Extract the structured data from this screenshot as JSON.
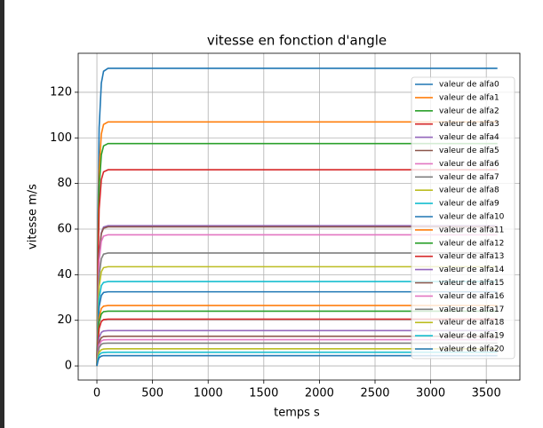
{
  "chart_data": {
    "type": "line",
    "title": "vitesse en fonction d'angle",
    "xlabel": "temps s",
    "ylabel": "vitesse m/s",
    "x": [
      0,
      10,
      20,
      40,
      60,
      100,
      3600
    ],
    "xlim": [
      -168,
      3802
    ],
    "ylim": [
      -6.2,
      137.1
    ],
    "xticks": [
      0,
      500,
      1000,
      1500,
      2000,
      2500,
      3000,
      3500
    ],
    "yticks": [
      0,
      20,
      40,
      60,
      80,
      100,
      120
    ],
    "grid": true,
    "legend": "upper right",
    "series": [
      {
        "name": "valeur de alfa0",
        "color": "#1f77b4",
        "values": [
          0,
          65.3,
          104.4,
          124,
          129.2,
          130.5,
          130.5
        ]
      },
      {
        "name": "valeur de alfa1",
        "color": "#ff7f0e",
        "values": [
          0,
          53.5,
          85.6,
          101.7,
          105.9,
          107,
          107
        ]
      },
      {
        "name": "valeur de alfa2",
        "color": "#2ca02c",
        "values": [
          0,
          48.8,
          78,
          92.6,
          96.5,
          97.5,
          97.5
        ]
      },
      {
        "name": "valeur de alfa3",
        "color": "#d62728",
        "values": [
          0,
          43,
          68.8,
          81.7,
          85.1,
          86,
          86
        ]
      },
      {
        "name": "valeur de alfa4",
        "color": "#9467bd",
        "values": [
          0,
          30.8,
          49.2,
          58.4,
          60.9,
          61.5,
          61.5
        ]
      },
      {
        "name": "valeur de alfa5",
        "color": "#8c564b",
        "values": [
          0,
          30.5,
          48.8,
          58,
          60.4,
          61,
          61
        ]
      },
      {
        "name": "valeur de alfa6",
        "color": "#e377c2",
        "values": [
          0,
          28.8,
          46,
          54.6,
          56.9,
          57.5,
          57.5
        ]
      },
      {
        "name": "valeur de alfa7",
        "color": "#7f7f7f",
        "values": [
          0,
          24.8,
          39.6,
          47,
          49,
          49.5,
          49.5
        ]
      },
      {
        "name": "valeur de alfa8",
        "color": "#bcbd22",
        "values": [
          0,
          21.8,
          34.8,
          41.3,
          43.1,
          43.5,
          43.5
        ]
      },
      {
        "name": "valeur de alfa9",
        "color": "#17becf",
        "values": [
          0,
          18.5,
          29.6,
          35.2,
          36.6,
          37,
          37
        ]
      },
      {
        "name": "valeur de alfa10",
        "color": "#1f77b4",
        "values": [
          0,
          16.3,
          26,
          30.9,
          32.2,
          32.5,
          32.5
        ]
      },
      {
        "name": "valeur de alfa11",
        "color": "#ff7f0e",
        "values": [
          0,
          13.3,
          21.2,
          25.2,
          26.2,
          26.5,
          26.5
        ]
      },
      {
        "name": "valeur de alfa12",
        "color": "#2ca02c",
        "values": [
          0,
          12,
          19.2,
          22.8,
          23.8,
          24,
          24
        ]
      },
      {
        "name": "valeur de alfa13",
        "color": "#d62728",
        "values": [
          0,
          10.3,
          16.4,
          19.5,
          20.3,
          20.5,
          20.5
        ]
      },
      {
        "name": "valeur de alfa14",
        "color": "#9467bd",
        "values": [
          0,
          7.8,
          12.4,
          14.7,
          15.3,
          15.5,
          15.5
        ]
      },
      {
        "name": "valeur de alfa15",
        "color": "#8c564b",
        "values": [
          0,
          6.5,
          10.4,
          12.4,
          12.9,
          13,
          13
        ]
      },
      {
        "name": "valeur de alfa16",
        "color": "#e377c2",
        "values": [
          0,
          5.8,
          9.2,
          10.9,
          11.4,
          11.5,
          11.5
        ]
      },
      {
        "name": "valeur de alfa17",
        "color": "#7f7f7f",
        "values": [
          0,
          5,
          8,
          9.5,
          9.9,
          10,
          10
        ]
      },
      {
        "name": "valeur de alfa18",
        "color": "#bcbd22",
        "values": [
          0,
          3.8,
          6,
          7.1,
          7.4,
          7.5,
          7.5
        ]
      },
      {
        "name": "valeur de alfa19",
        "color": "#17becf",
        "values": [
          0,
          3,
          4.8,
          5.7,
          5.9,
          6,
          6
        ]
      },
      {
        "name": "valeur de alfa20",
        "color": "#1f77b4",
        "values": [
          0,
          2.3,
          3.6,
          4.3,
          4.5,
          4.5,
          4.5
        ]
      }
    ]
  }
}
